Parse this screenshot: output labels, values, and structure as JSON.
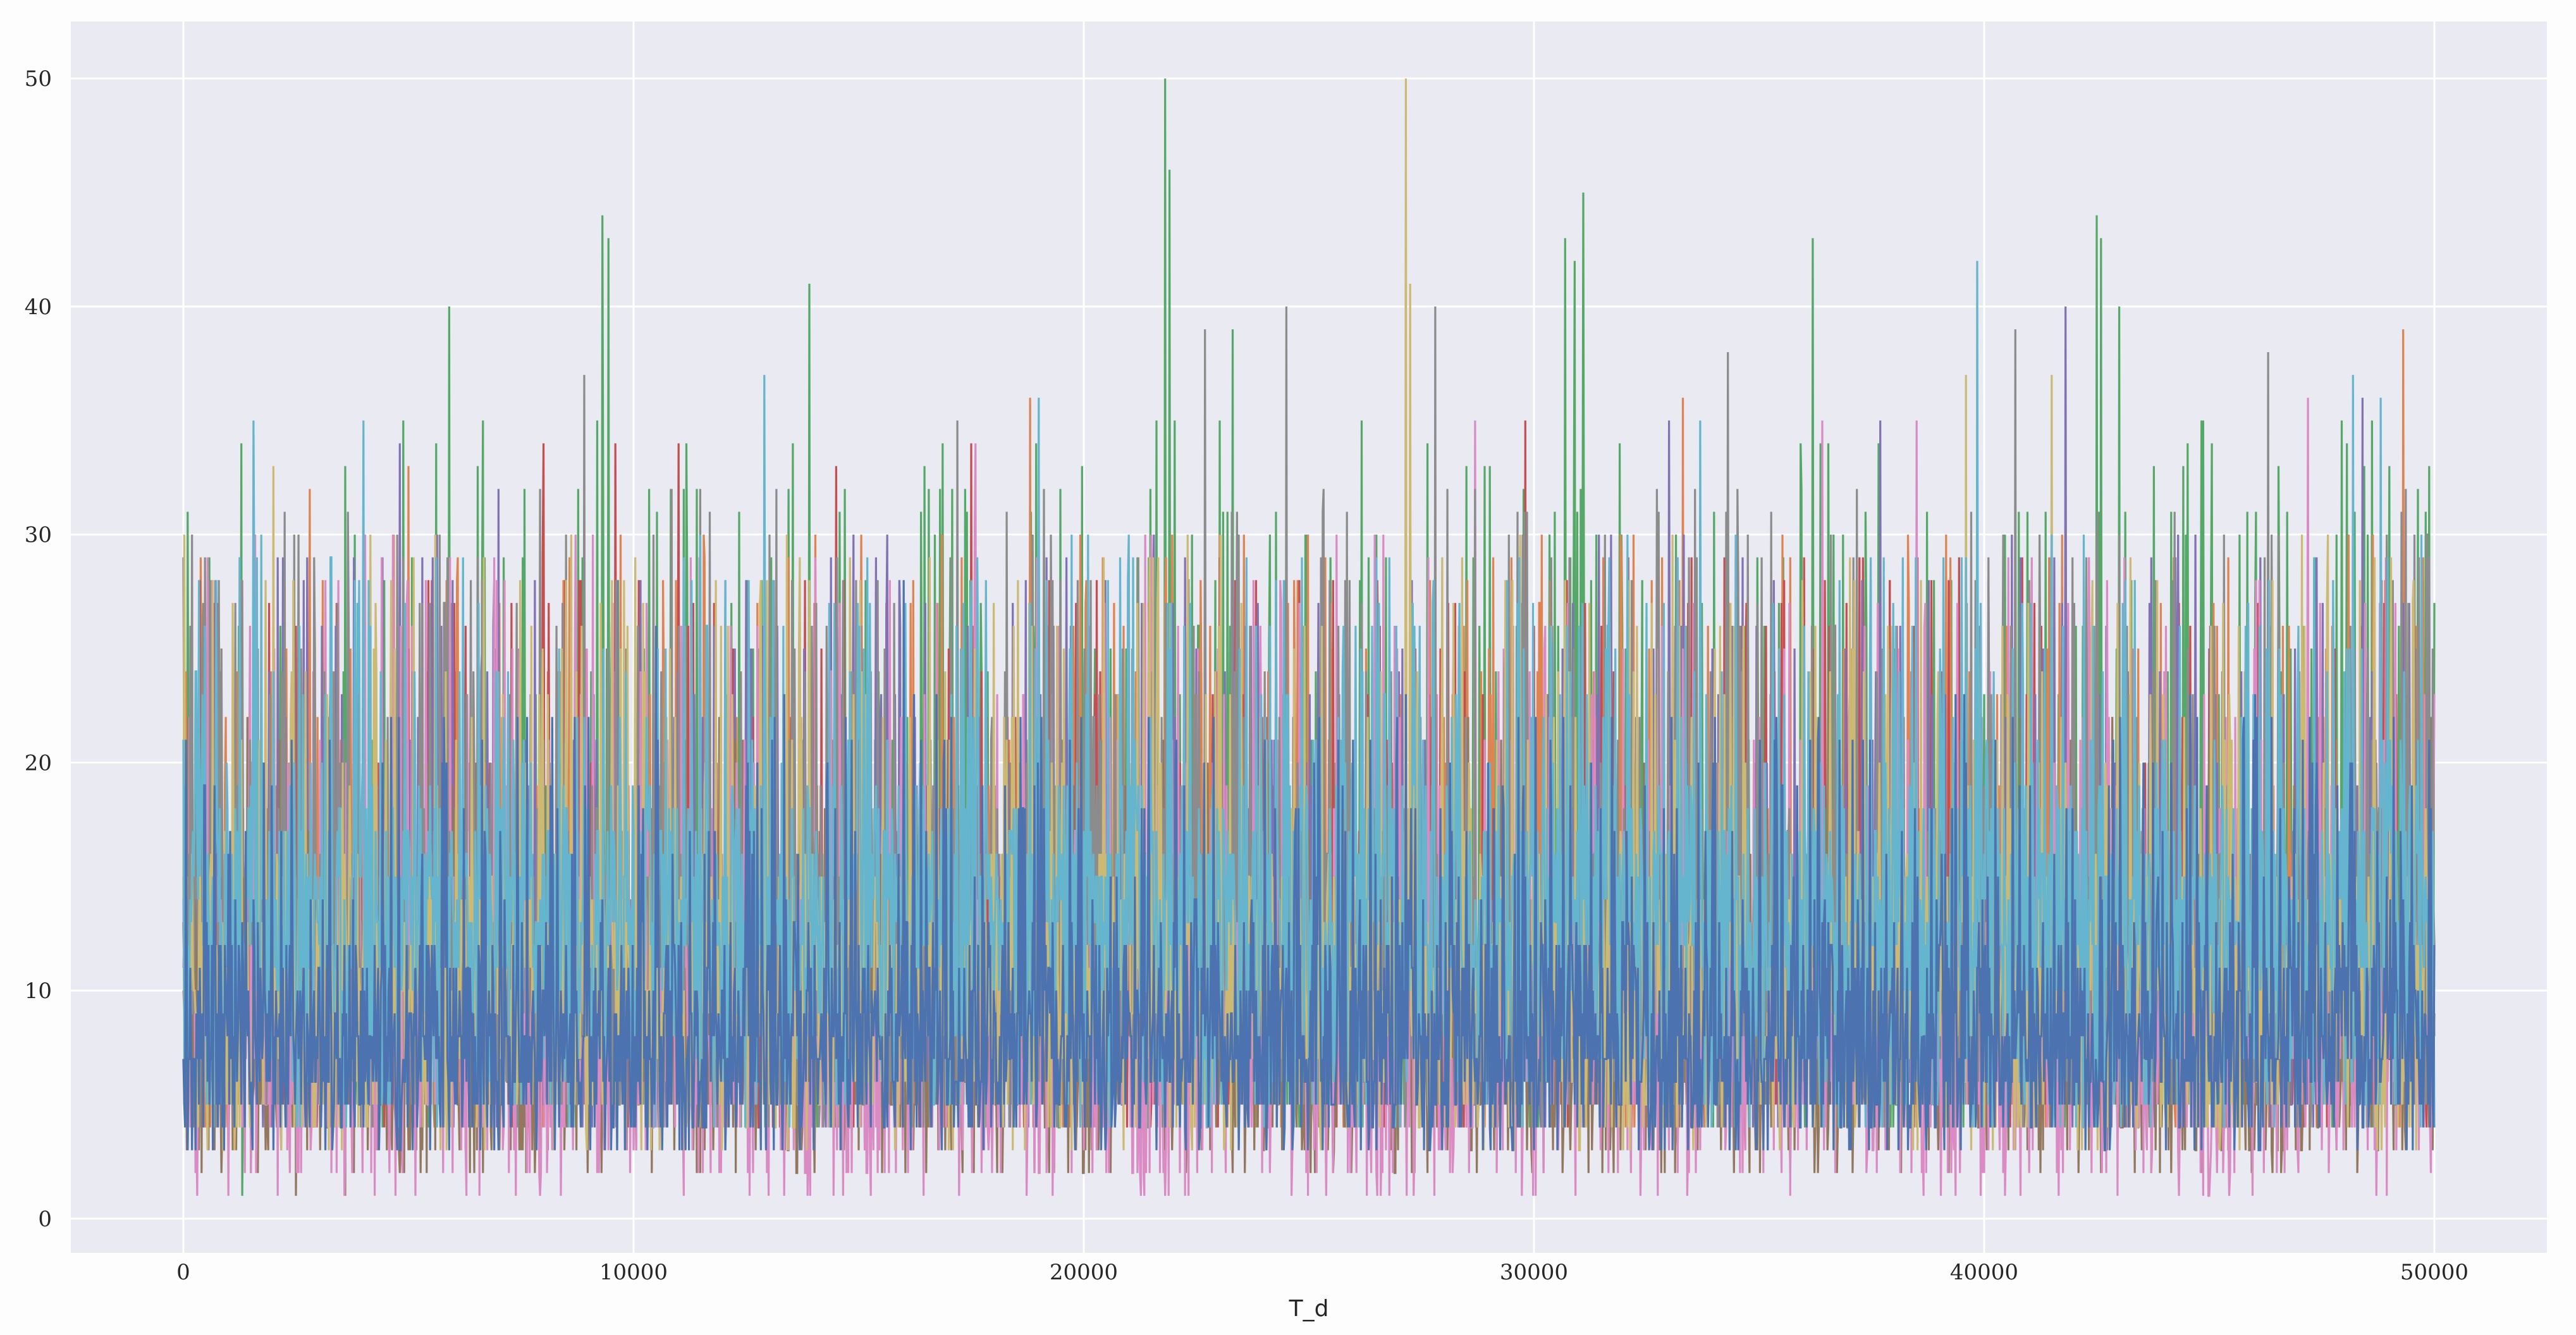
{
  "chart_data": {
    "type": "line",
    "title": "",
    "xlabel": "T_d",
    "ylabel": "",
    "xlim": [
      -2500,
      52500
    ],
    "ylim": [
      -1.5,
      52.5
    ],
    "x_ticks": [
      0,
      10000,
      20000,
      30000,
      40000,
      50000
    ],
    "y_ticks": [
      0,
      10,
      20,
      30,
      40,
      50
    ],
    "grid": true,
    "legend": "none",
    "x_range": [
      0,
      50000
    ],
    "series": [
      {
        "color": "#55a868",
        "floor": 4,
        "mid": 12,
        "high": 35,
        "peaks": [
          [
            1300,
            1
          ],
          [
            5900,
            40
          ],
          [
            9300,
            44
          ],
          [
            9450,
            43
          ],
          [
            13900,
            41
          ],
          [
            21800,
            50
          ],
          [
            21900,
            46
          ],
          [
            23300,
            39
          ],
          [
            30700,
            43
          ],
          [
            30900,
            42
          ],
          [
            31100,
            45
          ],
          [
            36200,
            43
          ],
          [
            42500,
            44
          ],
          [
            42600,
            43
          ],
          [
            43000,
            40
          ],
          [
            49800,
            31
          ]
        ]
      },
      {
        "color": "#dd8452",
        "floor": 4,
        "mid": 11,
        "high": 30,
        "peaks": [
          [
            2800,
            32
          ],
          [
            5000,
            33
          ],
          [
            18800,
            36
          ],
          [
            33300,
            36
          ],
          [
            49300,
            39
          ]
        ]
      },
      {
        "color": "#c44e52",
        "floor": 4,
        "mid": 11,
        "high": 29,
        "peaks": [
          [
            700,
            27
          ],
          [
            8000,
            34
          ],
          [
            9600,
            34
          ],
          [
            11000,
            34
          ],
          [
            14500,
            33
          ],
          [
            17500,
            34
          ],
          [
            29800,
            35
          ]
        ]
      },
      {
        "color": "#8172b3",
        "floor": 4,
        "mid": 11,
        "high": 30,
        "peaks": [
          [
            4800,
            34
          ],
          [
            7000,
            32
          ],
          [
            33000,
            35
          ],
          [
            37700,
            35
          ],
          [
            41800,
            40
          ],
          [
            48400,
            36
          ]
        ]
      },
      {
        "color": "#937860",
        "floor": 2,
        "mid": 9,
        "high": 22,
        "peaks": [
          [
            400,
            2
          ],
          [
            1500,
            2
          ],
          [
            2500,
            1
          ],
          [
            3600,
            1
          ],
          [
            4900,
            2
          ],
          [
            38000,
            25
          ]
        ]
      },
      {
        "color": "#da8bc3",
        "floor": 1,
        "mid": 11,
        "high": 30,
        "peaks": [
          [
            300,
            1
          ],
          [
            1000,
            1
          ],
          [
            2100,
            1
          ],
          [
            3400,
            2
          ],
          [
            17600,
            34
          ],
          [
            28700,
            35
          ],
          [
            36400,
            35
          ],
          [
            38500,
            35
          ],
          [
            47200,
            36
          ]
        ]
      },
      {
        "color": "#8c8c8c",
        "floor": 4,
        "mid": 13,
        "high": 32,
        "peaks": [
          [
            150,
            26
          ],
          [
            8900,
            37
          ],
          [
            17200,
            35
          ],
          [
            22700,
            39
          ],
          [
            24500,
            40
          ],
          [
            27800,
            40
          ],
          [
            34300,
            38
          ],
          [
            40700,
            39
          ],
          [
            46300,
            38
          ]
        ]
      },
      {
        "color": "#ccb974",
        "floor": 3,
        "mid": 12,
        "high": 30,
        "peaks": [
          [
            2000,
            33
          ],
          [
            27150,
            50
          ],
          [
            27250,
            41
          ],
          [
            39600,
            37
          ],
          [
            41500,
            37
          ]
        ]
      },
      {
        "color": "#64b5cd",
        "floor": 4,
        "mid": 15,
        "high": 30,
        "peaks": [
          [
            1550,
            35
          ],
          [
            4000,
            35
          ],
          [
            12900,
            37
          ],
          [
            19000,
            36
          ],
          [
            33700,
            35
          ],
          [
            39850,
            42
          ],
          [
            48200,
            37
          ],
          [
            48800,
            36
          ]
        ]
      },
      {
        "color": "#4c72b0",
        "floor": 3,
        "mid": 9,
        "high": 23,
        "peaks": [
          [
            26500,
            3
          ],
          [
            42700,
            3
          ],
          [
            16000,
            28
          ],
          [
            10500,
            26
          ]
        ]
      }
    ]
  }
}
